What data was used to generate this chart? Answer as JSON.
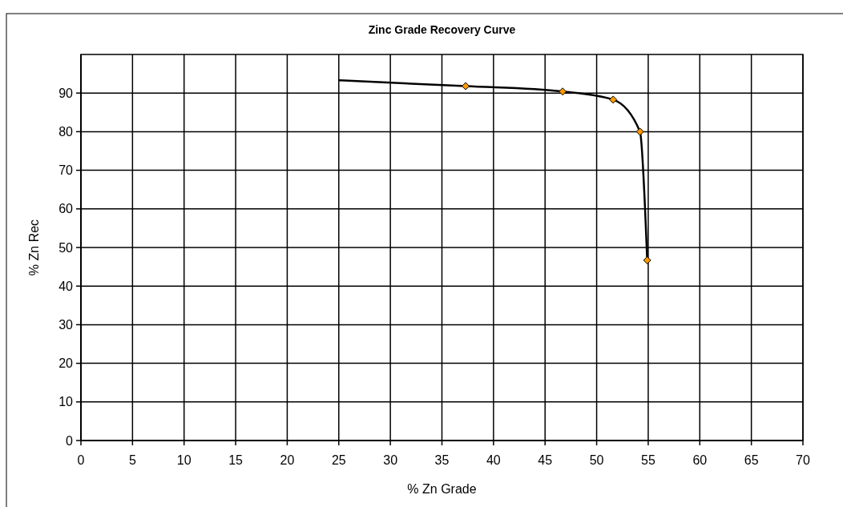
{
  "chart_data": {
    "type": "line",
    "title": "Zinc Grade Recovery Curve",
    "xlabel": "% Zn Grade",
    "ylabel": "% Zn Rec",
    "xlim": [
      0,
      70
    ],
    "xticks": [
      0,
      5,
      10,
      15,
      20,
      25,
      30,
      35,
      40,
      45,
      50,
      55,
      60,
      65,
      70
    ],
    "ylim": [
      0,
      100
    ],
    "yticks": [
      0,
      10,
      20,
      30,
      40,
      50,
      60,
      70,
      80,
      90
    ],
    "grid": true,
    "series": [
      {
        "color": "#000000",
        "marker": "none",
        "x": [
          25,
          37.3,
          46.7,
          51.6,
          54.2,
          54.9
        ],
        "values": [
          93.3,
          91.8,
          90.4,
          88.3,
          80,
          46.7
        ]
      },
      {
        "type": "scatter",
        "color": "#ff9900",
        "marker": "diamond",
        "x": [
          37.3,
          46.7,
          51.6,
          54.2,
          54.9
        ],
        "values": [
          91.8,
          90.4,
          88.3,
          80,
          46.7
        ]
      }
    ]
  }
}
